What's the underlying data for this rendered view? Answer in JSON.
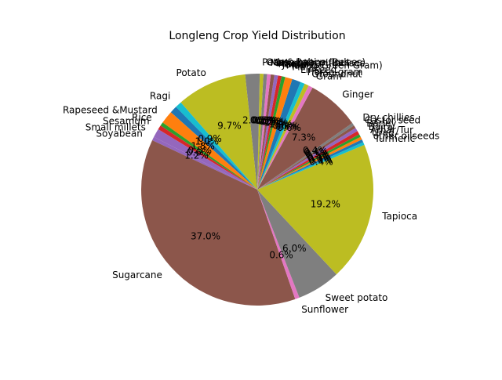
{
  "chart_data": {
    "type": "pie",
    "title": "Longleng Crop Yield Distribution",
    "start_angle_deg": 153,
    "slices": [
      {
        "label": "Soyabean",
        "value": 0.5,
        "pct": "",
        "color": "#9467bd"
      },
      {
        "label": "Sugarcane",
        "value": 37.0,
        "pct": "37.0%",
        "color": "#8c564b"
      },
      {
        "label": "Sunflower",
        "value": 0.6,
        "pct": "0.6%",
        "color": "#e377c2"
      },
      {
        "label": "Sweet potato",
        "value": 6.0,
        "pct": "6.0%",
        "color": "#7f7f7f"
      },
      {
        "label": "Tapioca",
        "value": 19.2,
        "pct": "19.2%",
        "color": "#bcbd22"
      },
      {
        "label": "Turmeric",
        "value": 0.4,
        "pct": "0.4%",
        "color": "#17becf"
      },
      {
        "label": "other oilseeds",
        "value": 0.4,
        "pct": "0.4%",
        "color": "#1f77b4"
      },
      {
        "label": "Urad",
        "value": 0.4,
        "pct": "0.4%",
        "color": "#ff7f0e"
      },
      {
        "label": "Arhar/Tur",
        "value": 0.4,
        "pct": "0.4%",
        "color": "#2ca02c"
      },
      {
        "label": "Bajra",
        "value": 0.5,
        "pct": "0.5%",
        "color": "#d62728"
      },
      {
        "label": "Barley",
        "value": 0.5,
        "pct": "0.5%",
        "color": "#9467bd"
      },
      {
        "label": "Castor seed",
        "value": 0.4,
        "pct": "0.4%",
        "color": "#8c564b"
      },
      {
        "label": "Dry chillies",
        "value": 0.4,
        "pct": "0.4%",
        "color": "#7f7f7f"
      },
      {
        "label": "Ginger",
        "value": 7.3,
        "pct": "7.3%",
        "color": "#8c564b"
      },
      {
        "label": "Gram",
        "value": 0.6,
        "pct": "0.6%",
        "color": "#e377c2"
      },
      {
        "label": "Groundnut",
        "value": 0.6,
        "pct": "0.6%",
        "color": "#bcbd22"
      },
      {
        "label": "Horse-gram",
        "value": 0.6,
        "pct": "0.6%",
        "color": "#17becf"
      },
      {
        "label": "Linseed",
        "value": 1.2,
        "pct": "1.2%",
        "color": "#1f77b4"
      },
      {
        "label": "Maize",
        "value": 1.0,
        "pct": "1.0%",
        "color": "#ff7f0e"
      },
      {
        "label": "Moong(Green Gram)",
        "value": 0.5,
        "pct": "0.5%",
        "color": "#2ca02c"
      },
      {
        "label": "Jowar",
        "value": 0.5,
        "pct": "0.5%",
        "color": "#d62728"
      },
      {
        "label": "Khesari",
        "value": 0.5,
        "pct": "0.5%",
        "color": "#9467bd"
      },
      {
        "label": "Other Kharif pulses",
        "value": 0.5,
        "pct": "0.5%",
        "color": "#8c564b"
      },
      {
        "label": "Masoor",
        "value": 0.5,
        "pct": "0.5%",
        "color": "#e377c2"
      },
      {
        "label": "Other Rabi pulses",
        "value": 0.5,
        "pct": "0.5%",
        "color": "#7f7f7f"
      },
      {
        "label": "Peas & beans (Pulses)",
        "value": 0.5,
        "pct": "",
        "color": "#bcbd22"
      },
      {
        "label": "",
        "value": 2.0,
        "pct": "2.0%",
        "color": "#7f7f7f"
      },
      {
        "label": "Potato",
        "value": 9.7,
        "pct": "9.7%",
        "color": "#bcbd22"
      },
      {
        "label": "Ragi",
        "value": 0.9,
        "pct": "0.9%",
        "color": "#17becf"
      },
      {
        "label": "",
        "value": 1.0,
        "pct": "1.0%",
        "color": "#1f77b4"
      },
      {
        "label": "Rapeseed &Mustard",
        "value": 1.8,
        "pct": "1.8%",
        "color": "#ff7f0e"
      },
      {
        "label": "Rice",
        "value": 0.5,
        "pct": "0.5%",
        "color": "#2ca02c"
      },
      {
        "label": "Sesamum",
        "value": 0.6,
        "pct": "0.6%",
        "color": "#d62728"
      },
      {
        "label": "Small millets",
        "value": 1.2,
        "pct": "1.2%",
        "color": "#9467bd"
      }
    ]
  }
}
